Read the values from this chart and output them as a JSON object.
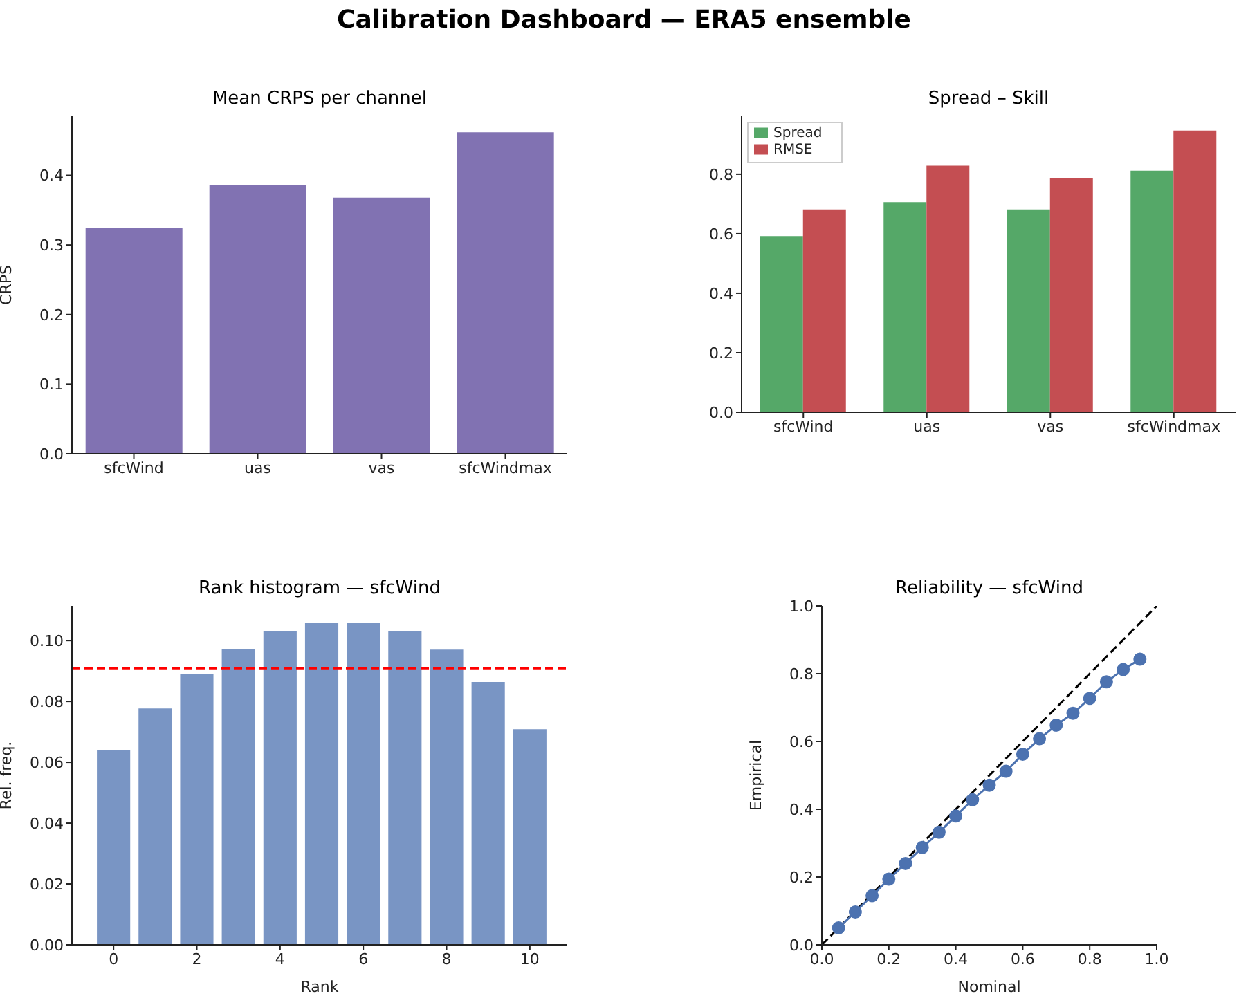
{
  "chart_data": [
    {
      "type": "bar",
      "title": "Mean CRPS per channel",
      "ylabel": "CRPS",
      "annotations": [
        "Calibration Dashboard — ERA5 ensemble"
      ],
      "categories": [
        "sfcWind",
        "uas",
        "vas",
        "sfcWindmax"
      ],
      "values": [
        0.324,
        0.386,
        0.368,
        0.462
      ],
      "color": "#8172b2",
      "ylim": [
        0,
        0.485
      ],
      "yticks": [
        {
          "value": 0,
          "label": "0.0"
        },
        0.1,
        0.2,
        0.3,
        0.4
      ]
    },
    {
      "type": "bar",
      "title": "Spread – Skill",
      "categories": [
        "sfcWind",
        "uas",
        "vas",
        "sfcWindmax"
      ],
      "series": [
        {
          "name": "Spread",
          "color": "#55a868",
          "values": [
            0.592,
            0.706,
            0.682,
            0.812
          ]
        },
        {
          "name": "RMSE",
          "color": "#c44e52",
          "values": [
            0.682,
            0.829,
            0.788,
            0.947
          ]
        }
      ],
      "ylim": [
        0,
        0.995
      ],
      "yticks": [
        {
          "value": 0,
          "label": "0.0"
        },
        0.2,
        0.4,
        0.6,
        0.8
      ],
      "legend": "top left"
    },
    {
      "type": "bar",
      "title": "Rank histogram — sfcWind",
      "xlabel": "Rank",
      "ylabel": "Rel. freq.",
      "x": [
        0,
        1,
        2,
        3,
        4,
        5,
        6,
        7,
        8,
        9,
        10
      ],
      "values": [
        0.0641,
        0.0777,
        0.0891,
        0.0973,
        0.1032,
        0.1059,
        0.1059,
        0.103,
        0.097,
        0.0864,
        0.0709
      ],
      "color": "#7995c4",
      "xlim": [
        -1,
        10.9
      ],
      "xticks": [
        0,
        2,
        4,
        6,
        8,
        10
      ],
      "ylim": [
        0,
        0.1114
      ],
      "yticks": [
        {
          "value": 0,
          "label": "0.00"
        },
        {
          "value": 0.02,
          "label": "0.02"
        },
        {
          "value": 0.04,
          "label": "0.04"
        },
        {
          "value": 0.06,
          "label": "0.06"
        },
        {
          "value": 0.08,
          "label": "0.08"
        },
        {
          "value": 0.1,
          "label": "0.10"
        }
      ],
      "ref_lines": [
        {
          "axis": "y",
          "value": 0.0909,
          "color": "#ff0000",
          "line_style": "dashed"
        }
      ]
    },
    {
      "type": "line",
      "title": "Reliability — sfcWind",
      "xlabel": "Nominal",
      "ylabel": "Empirical",
      "x": [
        0.05,
        0.1,
        0.15,
        0.2,
        0.25,
        0.3,
        0.35,
        0.4,
        0.45,
        0.5,
        0.55,
        0.6,
        0.65,
        0.7,
        0.75,
        0.8,
        0.85,
        0.9,
        0.95
      ],
      "series": [
        {
          "color": "#000000",
          "x": [
            0,
            1
          ],
          "values": [
            0,
            1
          ],
          "line_style": "dashed",
          "marker": "none"
        },
        {
          "color": "#4c72b0",
          "values": [
            0.05,
            0.097,
            0.145,
            0.194,
            0.24,
            0.287,
            0.332,
            0.38,
            0.428,
            0.471,
            0.512,
            0.562,
            0.608,
            0.648,
            0.683,
            0.727,
            0.776,
            0.812,
            0.843
          ],
          "line_style": "solid",
          "marker": "circle"
        }
      ],
      "xlim": [
        0,
        1
      ],
      "ylim": [
        0,
        1
      ],
      "xticks": [
        {
          "value": 0,
          "label": "0.0"
        },
        0.2,
        0.4,
        0.6,
        0.8,
        {
          "value": 1,
          "label": "1.0"
        }
      ],
      "yticks": [
        {
          "value": 0,
          "label": "0.0"
        },
        0.2,
        0.4,
        0.6,
        0.8,
        {
          "value": 1,
          "label": "1.0"
        }
      ]
    }
  ]
}
